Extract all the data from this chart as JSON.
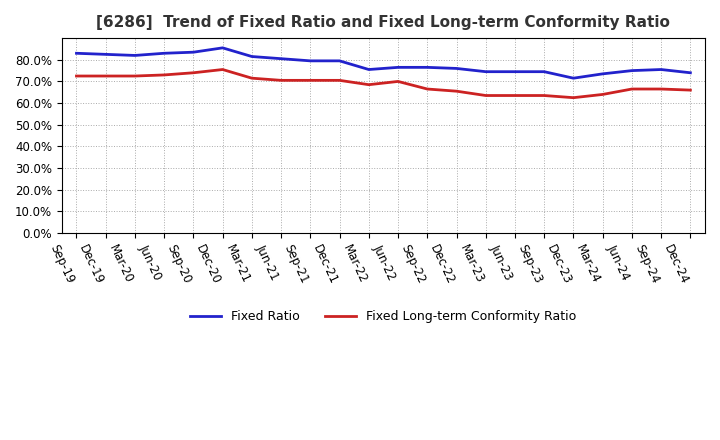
{
  "title": "[6286]  Trend of Fixed Ratio and Fixed Long-term Conformity Ratio",
  "x_labels": [
    "Sep-19",
    "Dec-19",
    "Mar-20",
    "Jun-20",
    "Sep-20",
    "Dec-20",
    "Mar-21",
    "Jun-21",
    "Sep-21",
    "Dec-21",
    "Mar-22",
    "Jun-22",
    "Sep-22",
    "Dec-22",
    "Mar-23",
    "Jun-23",
    "Sep-23",
    "Dec-23",
    "Mar-24",
    "Jun-24",
    "Sep-24",
    "Dec-24"
  ],
  "fixed_ratio": [
    83.0,
    82.5,
    82.0,
    83.0,
    83.5,
    85.5,
    81.5,
    80.5,
    79.5,
    79.5,
    75.5,
    76.5,
    76.5,
    76.0,
    74.5,
    74.5,
    74.5,
    71.5,
    73.5,
    75.0,
    75.5,
    74.0
  ],
  "fixed_lt_ratio": [
    72.5,
    72.5,
    72.5,
    73.0,
    74.0,
    75.5,
    71.5,
    70.5,
    70.5,
    70.5,
    68.5,
    70.0,
    66.5,
    65.5,
    63.5,
    63.5,
    63.5,
    62.5,
    64.0,
    66.5,
    66.5,
    66.0
  ],
  "fixed_ratio_color": "#2222cc",
  "fixed_lt_ratio_color": "#cc2222",
  "ylim": [
    0,
    90
  ],
  "yticks": [
    0,
    10,
    20,
    30,
    40,
    50,
    60,
    70,
    80
  ],
  "background_color": "#ffffff",
  "plot_bg_color": "#ffffff",
  "grid_color": "#aaaaaa",
  "legend_fixed_ratio": "Fixed Ratio",
  "legend_fixed_lt_ratio": "Fixed Long-term Conformity Ratio",
  "line_width": 2.0,
  "title_color": "#333333",
  "title_fontsize": 11,
  "tick_fontsize": 8.5,
  "xtick_rotation": -65,
  "legend_fontsize": 9
}
